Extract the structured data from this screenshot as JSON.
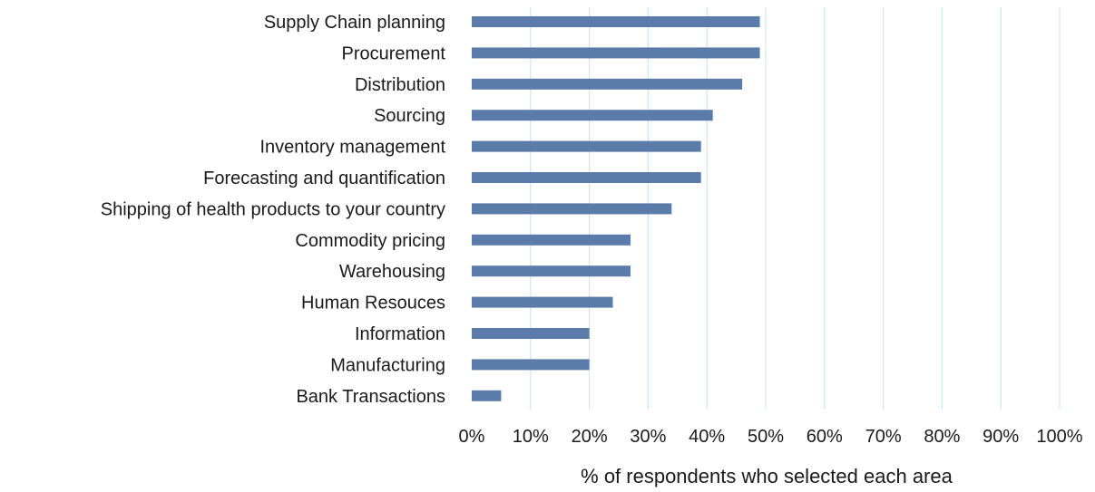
{
  "chart_data": {
    "type": "bar",
    "orientation": "horizontal",
    "categories": [
      "Supply Chain planning",
      "Procurement",
      "Distribution",
      "Sourcing",
      "Inventory management",
      "Forecasting and quantification",
      "Shipping of health products to your country",
      "Commodity pricing",
      "Warehousing",
      "Human Resouces",
      "Information",
      "Manufacturing",
      "Bank Transactions"
    ],
    "values": [
      49,
      49,
      46,
      41,
      39,
      39,
      34,
      27,
      27,
      24,
      20,
      20,
      5
    ],
    "xlim": [
      0,
      100
    ],
    "x_ticks": [
      "0%",
      "10%",
      "20%",
      "30%",
      "40%",
      "50%",
      "60%",
      "70%",
      "80%",
      "90%",
      "100%"
    ],
    "xlabel": "% of respondents who selected each area",
    "ylabel": "",
    "title": "",
    "grid": "vertical",
    "legend": "none",
    "bar_color": "#5b7bab",
    "grid_color": "#cfe8ef"
  }
}
